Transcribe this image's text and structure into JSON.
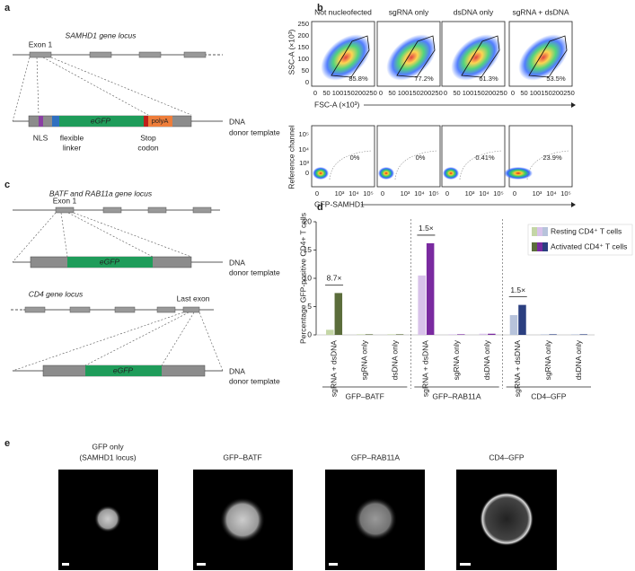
{
  "panel_labels": [
    "a",
    "b",
    "c",
    "d",
    "e"
  ],
  "panel_a": {
    "title": "SAMHD1 gene locus",
    "exon_label": "Exon 1",
    "insert_label": "eGFP",
    "polya_label": "polyA",
    "template_label": [
      "DNA",
      "donor template"
    ],
    "feature_labels": [
      "NLS",
      "flexible",
      "linker",
      "Stop",
      "codon"
    ]
  },
  "panel_b": {
    "columns": [
      "Not nucleofected",
      "sgRNA only",
      "dsDNA only",
      "sgRNA + dsDNA"
    ],
    "top": {
      "y_label": "SSC-A (×10³)",
      "x_label": "FSC-A (×10³)",
      "ticks": [
        "0",
        "50",
        "100",
        "150",
        "200",
        "250"
      ],
      "gates": [
        "85.8%",
        "77.2%",
        "61.3%",
        "53.5%"
      ]
    },
    "bottom": {
      "y_label": "Reference channel",
      "x_label": "GFP-SAMHD1",
      "y_ticks": [
        "10⁵",
        "10⁴",
        "10³",
        "0"
      ],
      "x_ticks": [
        "0",
        "10³",
        "10⁴",
        "10⁵"
      ],
      "gates": [
        "0%",
        "0%",
        "0.41%",
        "23.9%"
      ]
    }
  },
  "panel_c": {
    "title": "BATF and RAB11a gene locus",
    "exon_label": "Exon 1",
    "insert_label": "eGFP",
    "template_label": [
      "DNA",
      "donor template"
    ],
    "cd4_title": "CD4 gene locus",
    "last_exon_label": "Last exon",
    "cd4_insert_label": "eGFP",
    "cd4_template_label": [
      "DNA",
      "donor template"
    ]
  },
  "panel_e": {
    "titles": [
      "GFP only",
      "(SAMHD1 locus)",
      "GFP–BATF",
      "GFP–RAB11A",
      "CD4–GFP"
    ]
  },
  "chart_data": {
    "type": "bar",
    "y_label": "Percentage GFP-positive CD4+ T cells",
    "groups": [
      "GFP–BATF",
      "GFP–RAB11A",
      "CD4–GFP"
    ],
    "categories": [
      "sgRNA + dsDNA",
      "sgRNA only",
      "dsDNA only",
      "sgRNA + dsDNA",
      "sgRNA only",
      "dsDNA only",
      "sgRNA + dsDNA",
      "sgRNA only",
      "dsDNA only"
    ],
    "series": [
      {
        "name": "Resting CD4⁺ T cells",
        "colors": [
          "#c4d6a6",
          "#c4d6a6",
          "#c4d6a6",
          "#d8c2ea",
          "#d8c2ea",
          "#d8c2ea",
          "#b7c3db",
          "#b7c3db",
          "#b7c3db"
        ],
        "values": [
          0.9,
          0.1,
          0.1,
          10.5,
          0.1,
          0.2,
          3.5,
          0.1,
          0.1
        ]
      },
      {
        "name": "Activated CD4⁺ T cells",
        "colors": [
          "#5b6d3b",
          "#5b6d3b",
          "#5b6d3b",
          "#7a2aa0",
          "#7a2aa0",
          "#7a2aa0",
          "#2b3f80",
          "#2b3f80",
          "#2b3f80"
        ],
        "values": [
          7.4,
          0.1,
          0.1,
          16.2,
          0.1,
          0.2,
          5.3,
          0.1,
          0.1
        ]
      }
    ],
    "annotations": [
      "8.7×",
      "1.5×",
      "1.5×"
    ],
    "ylim": [
      0,
      20
    ],
    "yticks": [
      0,
      5,
      10,
      15,
      20
    ]
  }
}
